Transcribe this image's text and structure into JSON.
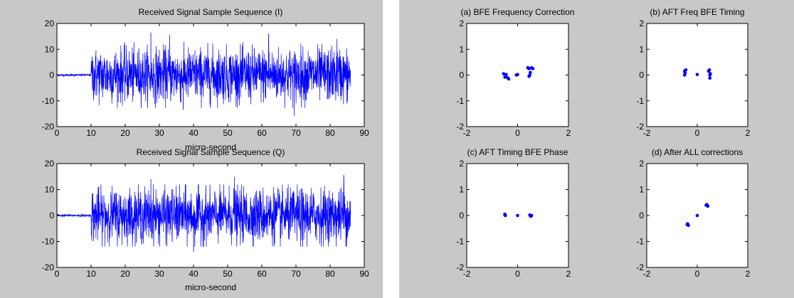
{
  "chart_data": [
    {
      "type": "line",
      "title": "Received Signal Sample Sequence (I)",
      "xlabel": "micro-second",
      "ylabel": "",
      "xlim": [
        0,
        90
      ],
      "ylim": [
        -20,
        20
      ],
      "xticks": [
        "0",
        "10",
        "20",
        "30",
        "40",
        "50",
        "60",
        "70",
        "80",
        "90"
      ],
      "yticks": [
        "20",
        "10",
        "0",
        "-10",
        "-20"
      ],
      "grid": false,
      "color": "#0000ff",
      "signal": {
        "x_start": 0,
        "x_end": 86,
        "burst_start": 10,
        "pre_burst_level": 0,
        "typical_amplitude": 6,
        "peak_amplitude": 16,
        "peaks": [
          {
            "x": 27.5,
            "y": 16.5
          },
          {
            "x": 33,
            "y": 15.5
          },
          {
            "x": 62,
            "y": 16
          },
          {
            "x": 69.5,
            "y": -16
          },
          {
            "x": 37,
            "y": -13.5
          },
          {
            "x": 82,
            "y": 14
          }
        ]
      }
    },
    {
      "type": "line",
      "title": "Received Signal Sample Sequence (Q)",
      "xlabel": "micro-second",
      "ylabel": "",
      "xlim": [
        0,
        90
      ],
      "ylim": [
        -20,
        20
      ],
      "xticks": [
        "0",
        "10",
        "20",
        "30",
        "40",
        "50",
        "60",
        "70",
        "80",
        "90"
      ],
      "yticks": [
        "20",
        "10",
        "0",
        "-10",
        "-20"
      ],
      "grid": false,
      "color": "#0000ff",
      "signal": {
        "x_start": 0,
        "x_end": 86,
        "burst_start": 10,
        "pre_burst_level": 0,
        "typical_amplitude": 6,
        "peak_amplitude": 15,
        "peaks": [
          {
            "x": 27.5,
            "y": 14
          },
          {
            "x": 52,
            "y": 15
          },
          {
            "x": 84,
            "y": 15.5
          },
          {
            "x": 40,
            "y": -14
          },
          {
            "x": 72,
            "y": -12
          }
        ]
      }
    },
    {
      "type": "scatter",
      "title": "(a) BFE Frequency Correction",
      "xlim": [
        -2,
        2
      ],
      "ylim": [
        -2,
        2
      ],
      "xticks": [
        "-2",
        "0",
        "2"
      ],
      "yticks": [
        "2",
        "1",
        "0",
        "-1",
        "-2"
      ],
      "color": "#0000ff",
      "points": [
        [
          -0.55,
          0.05
        ],
        [
          -0.5,
          -0.08
        ],
        [
          -0.45,
          0.02
        ],
        [
          -0.4,
          -0.1
        ],
        [
          -0.35,
          -0.15
        ],
        [
          -0.05,
          0.0
        ],
        [
          0.0,
          0.02
        ],
        [
          0.4,
          0.28
        ],
        [
          0.45,
          0.25
        ],
        [
          0.55,
          0.28
        ],
        [
          0.5,
          0.1
        ],
        [
          0.45,
          -0.05
        ],
        [
          0.6,
          0.25
        ],
        [
          0.48,
          0.0
        ]
      ]
    },
    {
      "type": "scatter",
      "title": "(b) AFT Freq BFE Timing",
      "xlim": [
        -2,
        2
      ],
      "ylim": [
        -2,
        2
      ],
      "xticks": [
        "-2",
        "0",
        "2"
      ],
      "yticks": [
        "2",
        "1",
        "0",
        "-1",
        "-2"
      ],
      "color": "#0000ff",
      "points": [
        [
          -0.5,
          0.15
        ],
        [
          -0.5,
          0.0
        ],
        [
          -0.45,
          0.2
        ],
        [
          -0.48,
          0.08
        ],
        [
          0.0,
          0.02
        ],
        [
          0.45,
          0.15
        ],
        [
          0.5,
          0.0
        ],
        [
          0.5,
          -0.12
        ],
        [
          0.48,
          0.2
        ],
        [
          0.52,
          0.05
        ]
      ]
    },
    {
      "type": "scatter",
      "title": "(c) AFT Timing BFE Phase",
      "xlim": [
        -2,
        2
      ],
      "ylim": [
        -2,
        2
      ],
      "xticks": [
        "-2",
        "0",
        "2"
      ],
      "yticks": [
        "2",
        "1",
        "0",
        "-1",
        "-2"
      ],
      "color": "#0000ff",
      "points": [
        [
          -0.5,
          0.05
        ],
        [
          -0.48,
          0.0
        ],
        [
          -0.5,
          0.02
        ],
        [
          0.0,
          0.0
        ],
        [
          0.5,
          0.0
        ],
        [
          0.52,
          -0.03
        ],
        [
          0.48,
          0.02
        ],
        [
          0.55,
          0.0
        ]
      ]
    },
    {
      "type": "scatter",
      "title": "(d) After ALL corrections",
      "xlim": [
        -2,
        2
      ],
      "ylim": [
        -2,
        2
      ],
      "xticks": [
        "-2",
        "0",
        "2"
      ],
      "yticks": [
        "2",
        "1",
        "0",
        "-1",
        "-2"
      ],
      "color": "#0000ff",
      "points": [
        [
          -0.4,
          -0.35
        ],
        [
          -0.35,
          -0.38
        ],
        [
          -0.38,
          -0.32
        ],
        [
          0.0,
          0.0
        ],
        [
          0.35,
          0.4
        ],
        [
          0.4,
          0.38
        ],
        [
          0.38,
          0.42
        ],
        [
          0.42,
          0.36
        ]
      ]
    }
  ]
}
